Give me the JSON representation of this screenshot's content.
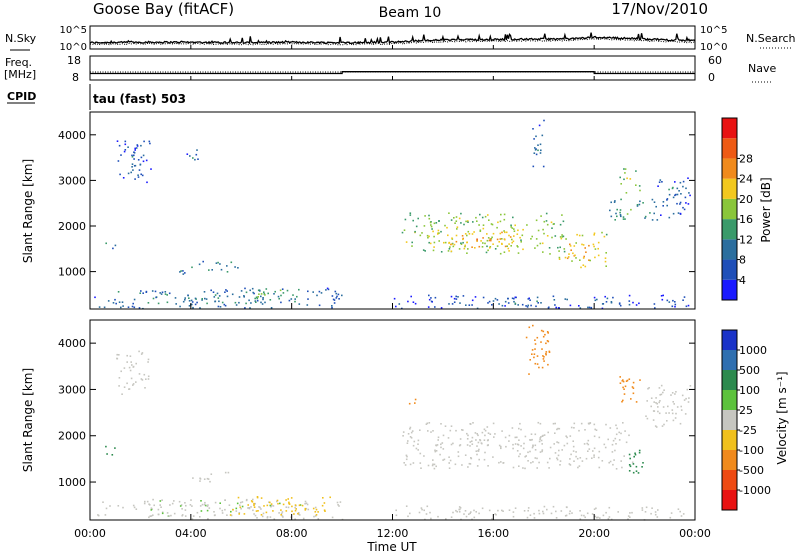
{
  "header": {
    "station": "Goose Bay (fitACF)",
    "beam": "Beam 10",
    "date": "17/Nov/2010"
  },
  "noise_panel": {
    "left_label": "N.Sky",
    "right_label": "N.Search",
    "left_ticks": [
      "10^5",
      "10^0"
    ],
    "right_ticks": [
      "10^5",
      "10^0"
    ]
  },
  "freq_panel": {
    "left_label_1": "Freq.",
    "left_label_2": "[MHz]",
    "right_label": "Nave",
    "left_ticks": [
      "18",
      "8"
    ],
    "right_ticks": [
      "60",
      "0"
    ]
  },
  "cpid": {
    "label": "CPID",
    "value": "tau (fast) 503"
  },
  "axes": {
    "ylabel": "Slant Range [km]",
    "xlabel": "Time UT",
    "y_ticks": [
      "1000",
      "2000",
      "3000",
      "4000"
    ],
    "x_ticks": [
      "00:00",
      "04:00",
      "08:00",
      "12:00",
      "16:00",
      "20:00",
      "00:00"
    ]
  },
  "colorbars": {
    "power": {
      "label": "Power [dB]",
      "ticks": [
        "4",
        "8",
        "12",
        "16",
        "20",
        "24",
        "28"
      ],
      "colors": [
        "#1a1aff",
        "#1f4fb8",
        "#2b6e9e",
        "#3a9a6a",
        "#8ac63a",
        "#f2c81e",
        "#f08a1c",
        "#ee5a14",
        "#e81212"
      ]
    },
    "velocity": {
      "label": "Velocity [m s⁻¹]",
      "ticks": [
        "1000",
        "500",
        "100",
        "25",
        "-25",
        "-100",
        "-500",
        "-1000"
      ],
      "colors": [
        "#1a33c8",
        "#2f6fb0",
        "#2c8a4e",
        "#5cc23c",
        "#c6c6c0",
        "#f0c01c",
        "#f08a1c",
        "#ee4a12",
        "#e81212"
      ]
    }
  },
  "chart_data": {
    "type": "heatmap",
    "x_range_hours": [
      0,
      24
    ],
    "y_range_km": [
      180,
      4500
    ],
    "noise_sky": {
      "x": [
        0,
        2,
        4,
        6,
        8,
        10,
        12,
        13,
        14,
        16,
        18,
        19,
        20,
        22,
        24
      ],
      "y": [
        1.2,
        1.3,
        1.3,
        1.2,
        1.3,
        1.2,
        1.3,
        1.6,
        1.8,
        1.9,
        2.0,
        2.0,
        2.4,
        2.0,
        1.6
      ]
    },
    "frequency_mhz": {
      "x": [
        0,
        10,
        10,
        20,
        20,
        24
      ],
      "y": [
        10.5,
        10.5,
        11.3,
        11.3,
        10.5,
        10.5
      ]
    },
    "nave": {
      "x": [
        0,
        10,
        10,
        20,
        20,
        24
      ],
      "y": [
        12,
        12,
        40,
        40,
        12,
        12
      ]
    },
    "power_regions": [
      {
        "t": [
          1.0,
          2.4
        ],
        "r": [
          2900,
          3900
        ],
        "p": 7
      },
      {
        "t": [
          3.8,
          4.4
        ],
        "r": [
          3400,
          3700
        ],
        "p": 8
      },
      {
        "t": [
          0.5,
          1.0
        ],
        "r": [
          1500,
          1800
        ],
        "p": 10
      },
      {
        "t": [
          3.5,
          6.0
        ],
        "r": [
          950,
          1250
        ],
        "p": 12
      },
      {
        "t": [
          0.1,
          10.0
        ],
        "r": [
          200,
          650
        ],
        "p": 10
      },
      {
        "t": [
          6.0,
          8.5
        ],
        "r": [
          400,
          650
        ],
        "p": 15
      },
      {
        "t": [
          12.3,
          18.8
        ],
        "r": [
          1400,
          2300
        ],
        "p": 19
      },
      {
        "t": [
          13.5,
          17.0
        ],
        "r": [
          1500,
          1900
        ],
        "p": 24
      },
      {
        "t": [
          18.5,
          20.5
        ],
        "r": [
          1100,
          1900
        ],
        "p": 22
      },
      {
        "t": [
          20.5,
          22.5
        ],
        "r": [
          2100,
          2600
        ],
        "p": 13
      },
      {
        "t": [
          22.5,
          23.8
        ],
        "r": [
          2200,
          3100
        ],
        "p": 8
      },
      {
        "t": [
          21.0,
          21.8
        ],
        "r": [
          2600,
          3300
        ],
        "p": 20
      },
      {
        "t": [
          17.5,
          18.0
        ],
        "r": [
          3100,
          4400
        ],
        "p": 8
      },
      {
        "t": [
          12.0,
          24.0
        ],
        "r": [
          200,
          500
        ],
        "p": 7
      }
    ],
    "velocity_regions": [
      {
        "t": [
          1.0,
          2.4
        ],
        "r": [
          2900,
          3900
        ],
        "v": 0
      },
      {
        "t": [
          0.5,
          1.0
        ],
        "r": [
          1500,
          1800
        ],
        "v": 120
      },
      {
        "t": [
          4.0,
          5.5
        ],
        "r": [
          950,
          1250
        ],
        "v": 0
      },
      {
        "t": [
          0.1,
          10.0
        ],
        "r": [
          200,
          650
        ],
        "v": 10
      },
      {
        "t": [
          5.5,
          9.5
        ],
        "r": [
          300,
          700
        ],
        "v": -80
      },
      {
        "t": [
          12.3,
          21.5
        ],
        "r": [
          1300,
          2300
        ],
        "v": 0
      },
      {
        "t": [
          12.5,
          13.0
        ],
        "r": [
          2700,
          2900
        ],
        "v": -300
      },
      {
        "t": [
          20.8,
          21.8
        ],
        "r": [
          2700,
          3300
        ],
        "v": -250
      },
      {
        "t": [
          21.2,
          22.0
        ],
        "r": [
          1100,
          1700
        ],
        "v": 150
      },
      {
        "t": [
          22.0,
          23.8
        ],
        "r": [
          2200,
          3100
        ],
        "v": 0
      },
      {
        "t": [
          17.2,
          18.2
        ],
        "r": [
          3300,
          4400
        ],
        "v": -200
      },
      {
        "t": [
          12.0,
          24.0
        ],
        "r": [
          200,
          500
        ],
        "v": 0
      }
    ]
  }
}
